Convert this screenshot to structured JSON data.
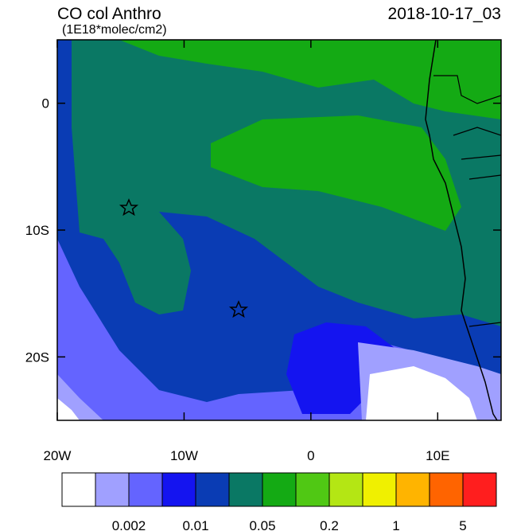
{
  "title": "CO col Anthro",
  "units": "(1E18*molec/cm2)",
  "date": "2018-10-17_03",
  "map": {
    "xlim": [
      -20,
      15
    ],
    "ylim": [
      -25,
      5
    ],
    "xticks": [
      {
        "value": -20,
        "label": "20W"
      },
      {
        "value": -10,
        "label": "10W"
      },
      0,
      {
        "value": 10,
        "label": "10E"
      }
    ],
    "yticks": [
      0,
      {
        "value": -10,
        "label": "10S"
      },
      {
        "value": -20,
        "label": "20S"
      }
    ]
  },
  "colorbar": {
    "colors": [
      "#ffffff",
      "#a0a0ff",
      "#6464ff",
      "#1414f0",
      "#0a3cb4",
      "#0a7864",
      "#14aa14",
      "#50c814",
      "#b4e614",
      "#f0f000",
      "#ffb400",
      "#ff6400",
      "#ff1e1e"
    ],
    "labels": [
      0.002,
      0.01,
      0.05,
      0.2,
      1,
      5
    ]
  }
}
